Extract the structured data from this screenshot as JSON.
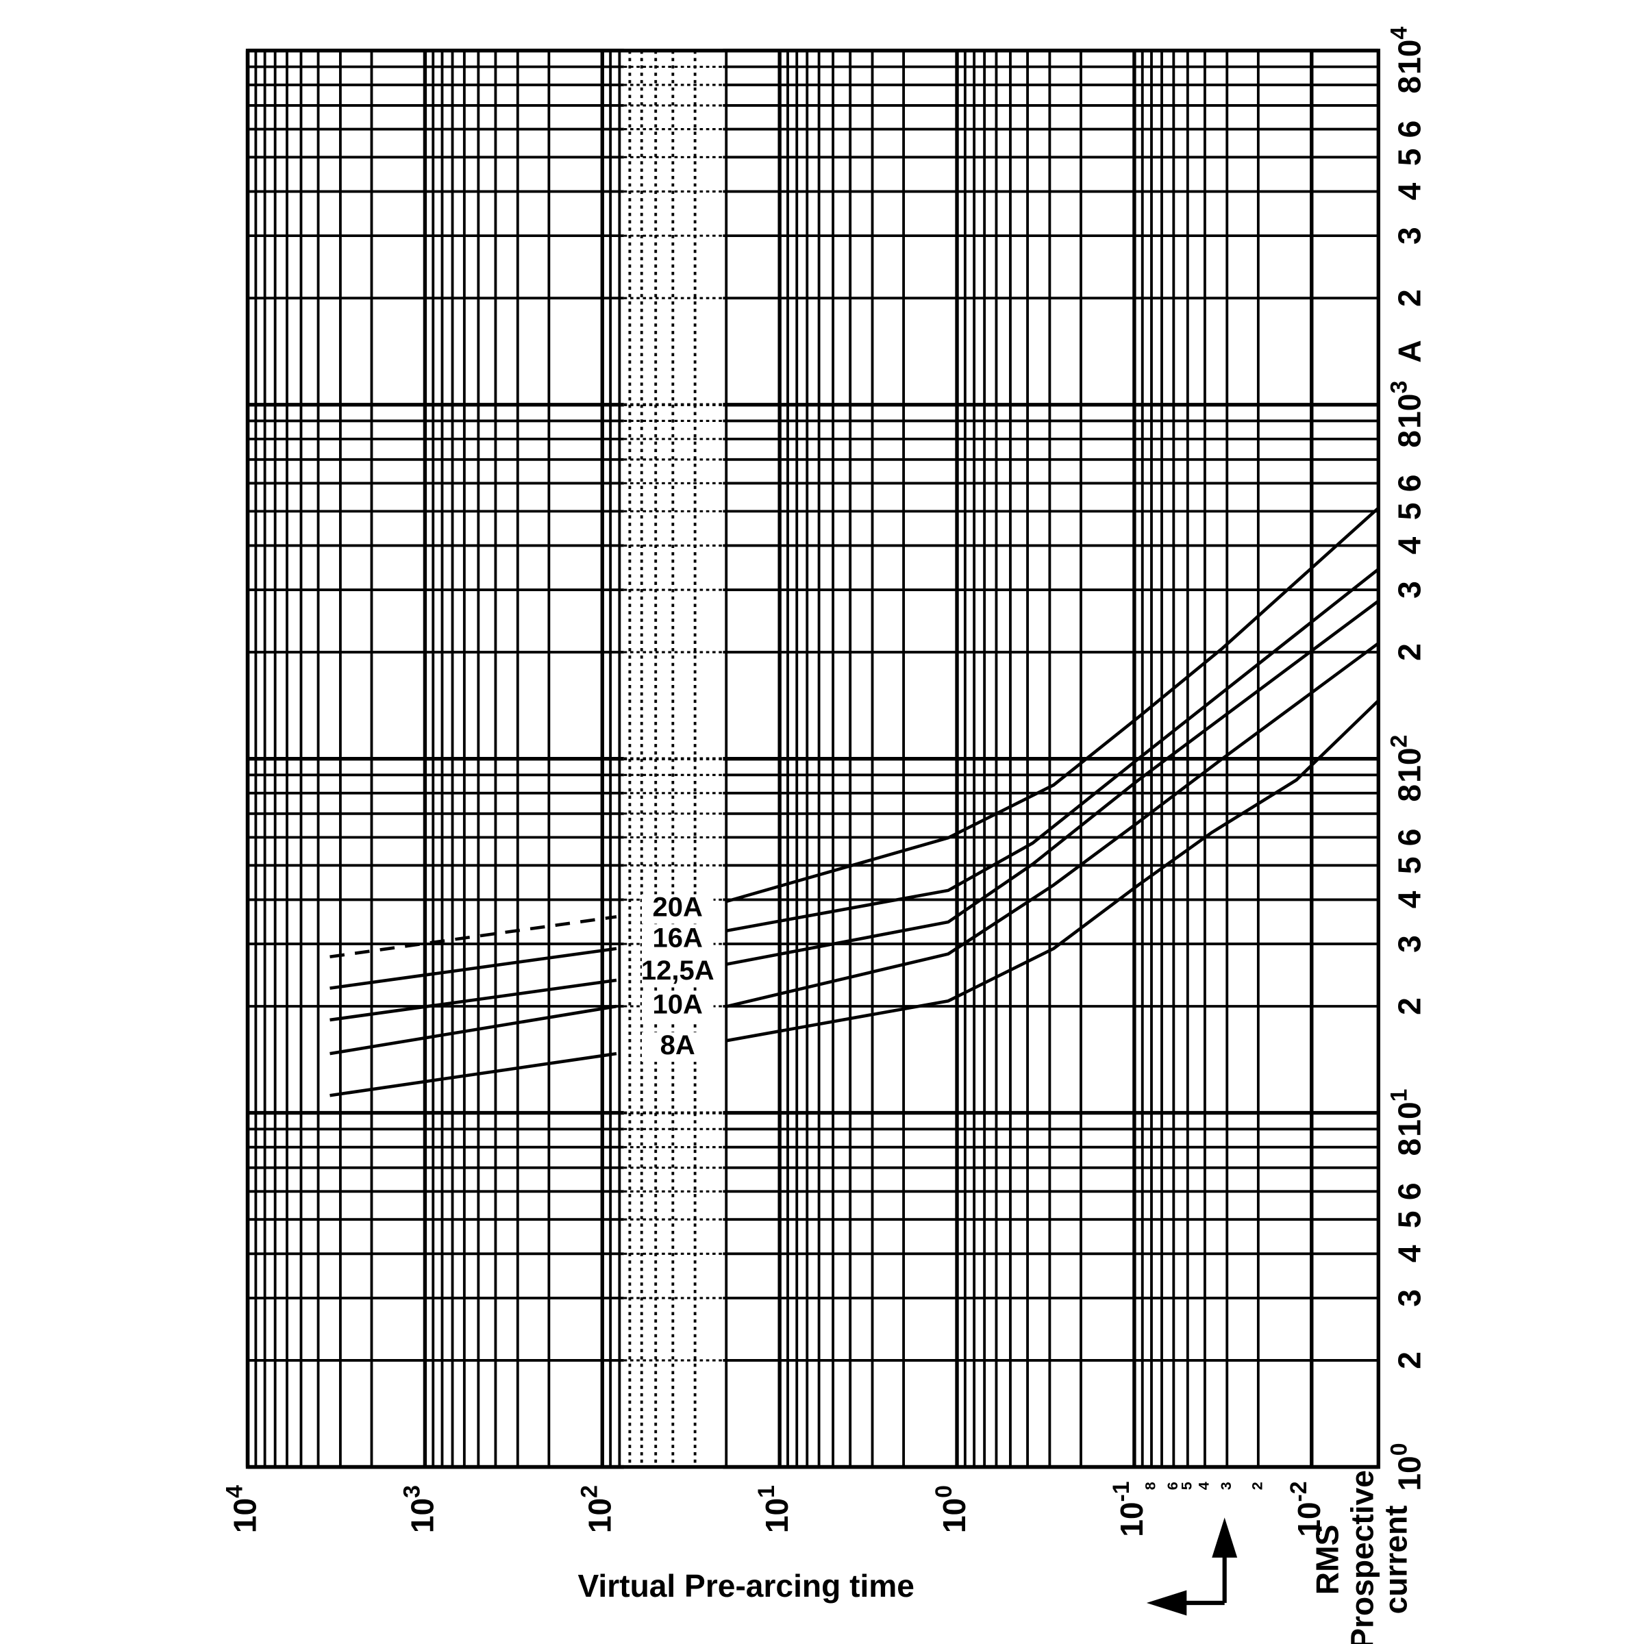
{
  "chart_data": {
    "type": "line",
    "x_label": "Virtual Pre-arcing time",
    "y_label": [
      "RMS",
      "Prospective",
      "current"
    ],
    "y_unit": "A",
    "xscale": "log",
    "yscale": "log",
    "xlim": [
      10000,
      0.0042
    ],
    "ylim": [
      1,
      10000
    ],
    "xticks": [
      {
        "value": 10000,
        "label": "10",
        "exponent": "4"
      },
      {
        "value": 1000,
        "label": "10",
        "exponent": "3"
      },
      {
        "value": 100,
        "label": "10",
        "exponent": "2"
      },
      {
        "value": 10,
        "label": "10",
        "exponent": "1"
      },
      {
        "value": 1,
        "label": "10",
        "exponent": "0"
      },
      {
        "value": 0.1,
        "label": "10",
        "exponent": "-1"
      },
      {
        "value": 0.01,
        "label": "10",
        "exponent": "-2"
      }
    ],
    "yticks": [
      {
        "value": 1,
        "label": "10",
        "exponent": "0"
      },
      {
        "value": 10,
        "label": "10",
        "exponent": "1"
      },
      {
        "value": 100,
        "label": "10",
        "exponent": "2"
      },
      {
        "value": 1000,
        "label": "10",
        "exponent": "3"
      },
      {
        "value": 10000,
        "label": "10",
        "exponent": "4"
      }
    ],
    "minor_multipliers": [
      2,
      3,
      4,
      5,
      6,
      7,
      8,
      9
    ],
    "yminor_labels": [
      2,
      3,
      4,
      5,
      6,
      8
    ],
    "xminor_labels": [
      2,
      3,
      4,
      5,
      6,
      8
    ],
    "grid": true,
    "color": "#000000",
    "series": [
      {
        "name": "8A",
        "line_styles": [
          "solid",
          "solid"
        ],
        "x": [
          3440,
          83.2,
          null,
          19.8,
          1.12,
          0.285,
          0.0949,
          0.0366,
          0.0122,
          0.0042
        ],
        "values": [
          11.2,
          14.7,
          null,
          16.0,
          20.7,
          29.1,
          44.0,
          61.9,
          87.1,
          146
        ]
      },
      {
        "name": "10A",
        "line_styles": [
          "solid",
          "solid"
        ],
        "x": [
          3440,
          83.2,
          null,
          19.8,
          1.12,
          0.285,
          0.0949,
          0.0319,
          0.0042
        ],
        "values": [
          14.7,
          20.0,
          null,
          20.0,
          28.1,
          44.0,
          66.2,
          100,
          212
        ]
      },
      {
        "name": "12,5A",
        "line_styles": [
          "solid",
          "solid"
        ],
        "x": [
          3440,
          83.2,
          null,
          19.8,
          1.12,
          0.374,
          0.0949,
          0.0042
        ],
        "values": [
          18.3,
          23.7,
          null,
          26.3,
          34.6,
          50.4,
          87.1,
          279
        ]
      },
      {
        "name": "16A",
        "line_styles": [
          "solid",
          "solid"
        ],
        "x": [
          3440,
          83.2,
          null,
          19.8,
          1.12,
          0.374,
          0.0949,
          0.0042
        ],
        "values": [
          22.5,
          29.1,
          null,
          32.7,
          42.5,
          57.8,
          100,
          343
        ]
      },
      {
        "name": "20A",
        "line_styles": [
          "dashed",
          "solid"
        ],
        "x": [
          3440,
          83.2,
          null,
          19.8,
          1.12,
          0.285,
          0.0949,
          0.0319,
          0.0042
        ],
        "values": [
          27.6,
          35.8,
          null,
          39.6,
          59.8,
          84.3,
          131,
          205,
          511
        ]
      }
    ]
  }
}
